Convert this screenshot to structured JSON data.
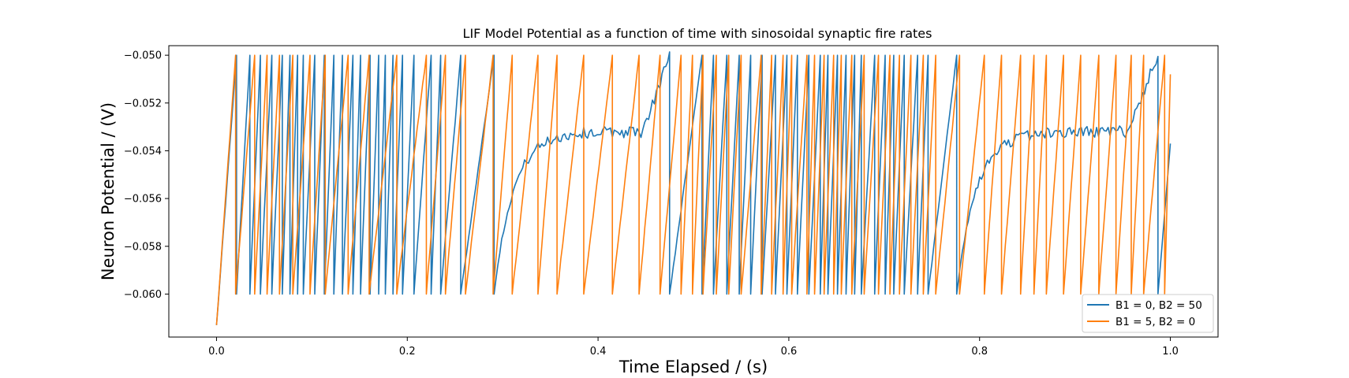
{
  "chart_data": {
    "type": "line",
    "title": "LIF Model Potential as a function of time with sinosoidal synaptic fire rates",
    "xlabel": "Time Elapsed / (s)",
    "ylabel": "Neuron Potential / (V)",
    "xlim": [
      -0.05,
      1.05
    ],
    "ylim": [
      -0.0618,
      -0.0496
    ],
    "xticks": [
      0.0,
      0.2,
      0.4,
      0.6,
      0.8,
      1.0
    ],
    "xtick_labels": [
      "0.0",
      "0.2",
      "0.4",
      "0.6",
      "0.8",
      "1.0"
    ],
    "yticks": [
      -0.06,
      -0.058,
      -0.056,
      -0.054,
      -0.052,
      -0.05
    ],
    "ytick_labels": [
      "−0.060",
      "−0.058",
      "−0.056",
      "−0.054",
      "−0.052",
      "−0.050"
    ],
    "grid": false,
    "legend_position": "lower-right",
    "series": [
      {
        "name": "B1 = 0, B2 = 50",
        "color": "#1f77b4",
        "v_rest": -0.0613,
        "v_reset": -0.06,
        "v_threshold": -0.05,
        "spike_times": [
          0.021,
          0.035,
          0.046,
          0.058,
          0.069,
          0.077,
          0.085,
          0.091,
          0.103,
          0.113,
          0.123,
          0.132,
          0.143,
          0.151,
          0.161,
          0.17,
          0.177,
          0.185,
          0.195,
          0.207,
          0.225,
          0.235,
          0.256,
          0.291,
          0.475,
          0.509,
          0.521,
          0.535,
          0.548,
          0.56,
          0.572,
          0.586,
          0.598,
          0.609,
          0.621,
          0.633,
          0.641,
          0.651,
          0.66,
          0.669,
          0.676,
          0.69,
          0.701,
          0.71,
          0.721,
          0.735,
          0.746,
          0.776,
          0.987
        ]
      },
      {
        "name": "B1 = 5, B2 = 0",
        "color": "#ff7f0e",
        "v_rest": -0.0613,
        "v_reset": -0.06,
        "v_threshold": -0.05,
        "spike_times": [
          0.02,
          0.04,
          0.053,
          0.066,
          0.08,
          0.098,
          0.114,
          0.138,
          0.16,
          0.189,
          0.22,
          0.24,
          0.261,
          0.29,
          0.31,
          0.337,
          0.357,
          0.385,
          0.415,
          0.443,
          0.465,
          0.487,
          0.499,
          0.51,
          0.524,
          0.537,
          0.55,
          0.571,
          0.582,
          0.594,
          0.603,
          0.619,
          0.627,
          0.637,
          0.647,
          0.655,
          0.666,
          0.679,
          0.694,
          0.706,
          0.716,
          0.728,
          0.741,
          0.754,
          0.779,
          0.805,
          0.823,
          0.843,
          0.857,
          0.87,
          0.888,
          0.906,
          0.925,
          0.943,
          0.959,
          0.972,
          0.994
        ],
        "end_value": -0.0508
      }
    ]
  }
}
